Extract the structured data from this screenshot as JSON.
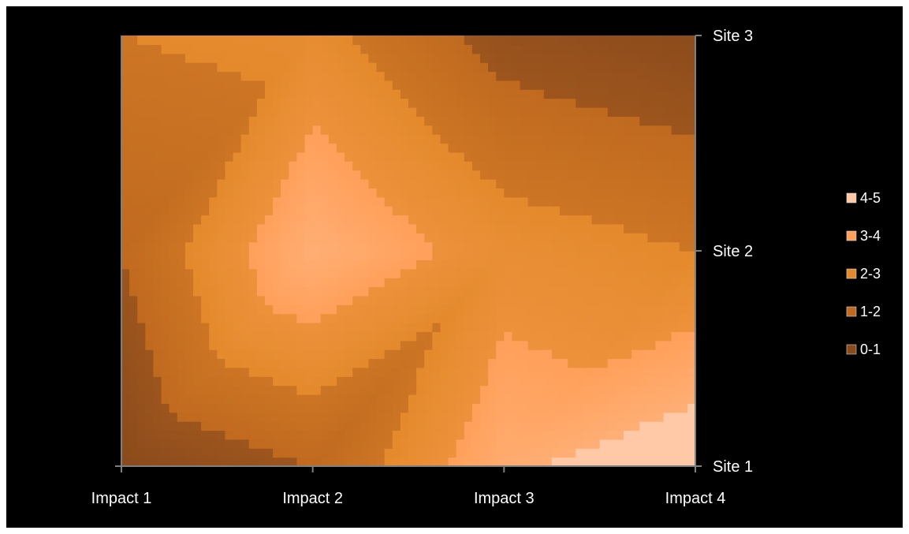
{
  "chart_data": {
    "type": "surface-contour",
    "title": "",
    "x_categories": [
      "Impact  1",
      "Impact  2",
      "Impact  3",
      "Impact  4"
    ],
    "y_categories": [
      "Site 1",
      "Site 2",
      "Site 3"
    ],
    "z_grid": [
      [
        0.0,
        1.0,
        3.8,
        4.8
      ],
      [
        1.0,
        4.0,
        2.5,
        2.0
      ],
      [
        2.0,
        2.3,
        0.6,
        0.1
      ]
    ],
    "legend": {
      "position": "right",
      "entries": [
        {
          "label": "4-5",
          "color": "#FFC9A8"
        },
        {
          "label": "3-4",
          "color": "#FFA05A"
        },
        {
          "label": "2-3",
          "color": "#E48A2C"
        },
        {
          "label": "1-2",
          "color": "#C06A20"
        },
        {
          "label": "0-1",
          "color": "#8A4A1C"
        }
      ]
    },
    "axis_color": "#7F7F7F",
    "background": "#000000"
  }
}
